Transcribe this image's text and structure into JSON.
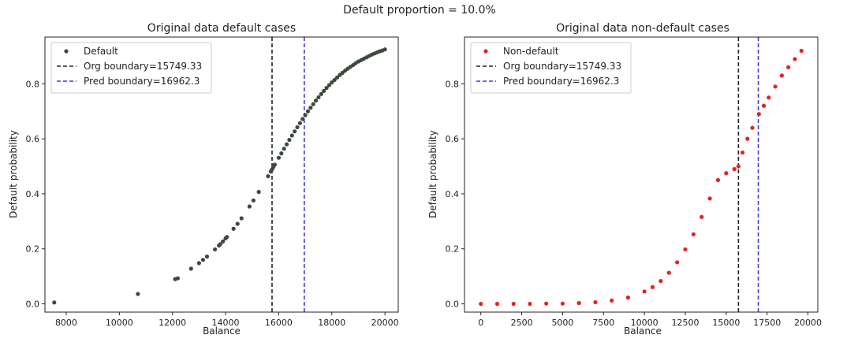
{
  "figure": {
    "suptitle": "Default proportion = 10.0%"
  },
  "chart_data": [
    {
      "type": "scatter",
      "title": "Original data default cases",
      "xlabel": "Balance",
      "ylabel": "Default probability",
      "xlim": [
        7200,
        20500
      ],
      "ylim": [
        -0.03,
        0.97
      ],
      "xticks": [
        8000,
        10000,
        12000,
        14000,
        16000,
        18000,
        20000
      ],
      "xtick_labels": [
        "8000",
        "10000",
        "12000",
        "14000",
        "16000",
        "18000",
        "20000"
      ],
      "yticks": [
        0.0,
        0.2,
        0.4,
        0.6,
        0.8
      ],
      "ytick_labels": [
        "0.0",
        "0.2",
        "0.4",
        "0.6",
        "0.8"
      ],
      "series": [
        {
          "name": "Default",
          "color": "#3d4a3d",
          "marker": "circle",
          "x": [
            7550,
            10700,
            12100,
            12200,
            12700,
            13000,
            13150,
            13300,
            13600,
            13750,
            13800,
            13900,
            14000,
            14050,
            14300,
            14450,
            14600,
            14900,
            15050,
            15250,
            15600,
            15700,
            15750,
            15800,
            15850,
            16000,
            16100,
            16200,
            16300,
            16400,
            16500,
            16600,
            16700,
            16800,
            16900,
            17000,
            17100,
            17200,
            17300,
            17400,
            17500,
            17600,
            17700,
            17800,
            17900,
            18000,
            18100,
            18200,
            18300,
            18400,
            18500,
            18600,
            18700,
            18800,
            18900,
            19000,
            19100,
            19200,
            19300,
            19400,
            19500,
            19600,
            19700,
            19800,
            19900,
            20000
          ],
          "y": [
            0.005,
            0.036,
            0.09,
            0.093,
            0.128,
            0.148,
            0.16,
            0.172,
            0.198,
            0.212,
            0.217,
            0.227,
            0.238,
            0.243,
            0.273,
            0.291,
            0.311,
            0.354,
            0.376,
            0.407,
            0.464,
            0.481,
            0.489,
            0.498,
            0.506,
            0.531,
            0.547,
            0.564,
            0.58,
            0.596,
            0.612,
            0.627,
            0.642,
            0.657,
            0.672,
            0.686,
            0.7,
            0.713,
            0.726,
            0.739,
            0.751,
            0.763,
            0.774,
            0.785,
            0.795,
            0.805,
            0.814,
            0.823,
            0.832,
            0.84,
            0.848,
            0.855,
            0.862,
            0.868,
            0.875,
            0.881,
            0.886,
            0.891,
            0.896,
            0.901,
            0.906,
            0.91,
            0.914,
            0.918,
            0.921,
            0.925
          ]
        }
      ],
      "vlines": [
        {
          "label": "Org boundary=15749.33",
          "x": 15749.33,
          "color": "#222222"
        },
        {
          "label": "Pred boundary=16962.3",
          "x": 16962.3,
          "color": "#3c3ccc"
        }
      ],
      "legend": "top-left"
    },
    {
      "type": "scatter",
      "title": "Original data non-default cases",
      "xlabel": "Balance",
      "ylabel": "Default probability",
      "xlim": [
        -1000,
        20600
      ],
      "ylim": [
        -0.03,
        0.97
      ],
      "xticks": [
        0,
        2500,
        5000,
        7500,
        10000,
        12500,
        15000,
        17500,
        20000
      ],
      "xtick_labels": [
        "0",
        "2500",
        "5000",
        "7500",
        "10000",
        "12500",
        "15000",
        "17500",
        "20000"
      ],
      "yticks": [
        0.0,
        0.2,
        0.4,
        0.6,
        0.8
      ],
      "ytick_labels": [
        "0.0",
        "0.2",
        "0.4",
        "0.6",
        "0.8"
      ],
      "series": [
        {
          "name": "Non-default",
          "color": "#e52222",
          "marker": "circle",
          "x": [
            0,
            1000,
            2000,
            3000,
            4000,
            5000,
            6000,
            7000,
            8000,
            9000,
            10000,
            10500,
            11000,
            11500,
            12000,
            12500,
            13000,
            13500,
            14000,
            14500,
            15000,
            15500,
            15749,
            16000,
            16300,
            16600,
            17000,
            17300,
            17600,
            18000,
            18400,
            18800,
            19200,
            19600
          ],
          "y": [
            0.0,
            0.0,
            0.0,
            0.0,
            0.001,
            0.001,
            0.003,
            0.006,
            0.012,
            0.023,
            0.045,
            0.061,
            0.083,
            0.113,
            0.151,
            0.198,
            0.253,
            0.316,
            0.383,
            0.45,
            0.475,
            0.49,
            0.5,
            0.55,
            0.6,
            0.64,
            0.69,
            0.72,
            0.75,
            0.79,
            0.83,
            0.86,
            0.89,
            0.92
          ]
        }
      ],
      "vlines": [
        {
          "label": "Org boundary=15749.33",
          "x": 15749.33,
          "color": "#222222"
        },
        {
          "label": "Pred boundary=16962.3",
          "x": 16962.3,
          "color": "#3c3ccc"
        }
      ],
      "legend": "top-left"
    }
  ]
}
